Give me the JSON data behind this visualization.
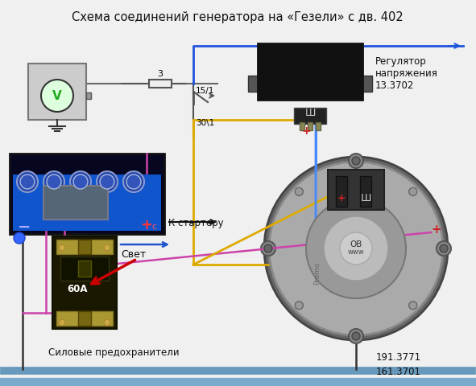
{
  "title": "Схема соединений генератора на «Гезели» с дв. 402",
  "title_fontsize": 10.5,
  "bg_color": "#f0f0f0",
  "labels": {
    "voltage_regulator": "Регулятор\nнапряжения\n13.3702",
    "to_starter": "К стартеру",
    "light": "Свет",
    "fuses": "Силовые предохранители",
    "fuse_60a": "60А",
    "label_3": "3",
    "label_15_1": "15/1",
    "label_30_1": "30\\1",
    "label_191": "191.3771",
    "label_161": "161.3701",
    "label_sh": "Ш",
    "label_ob": "ОВ",
    "label_www": "www",
    "label_c": "с",
    "label_sh2": "Ш"
  }
}
